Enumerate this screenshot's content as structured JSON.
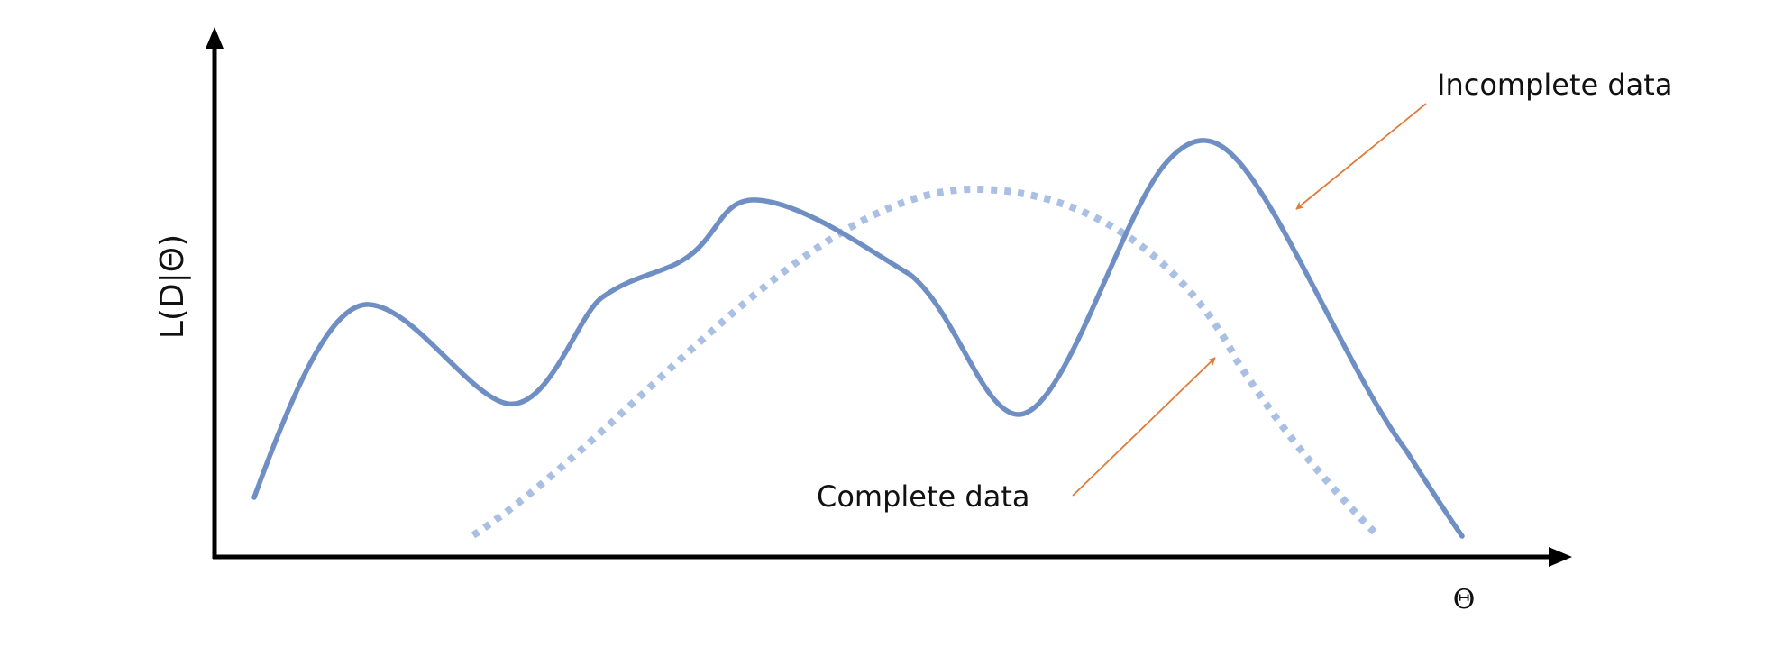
{
  "labels": {
    "y_axis": "L(D|Θ)",
    "x_axis": "Θ",
    "incomplete": "Incomplete data",
    "complete": "Complete data"
  },
  "colors": {
    "axis": "#000000",
    "incomplete_curve": "#6f8fc4",
    "complete_curve": "#a9bfe3",
    "pointer": "#e07b39"
  }
}
